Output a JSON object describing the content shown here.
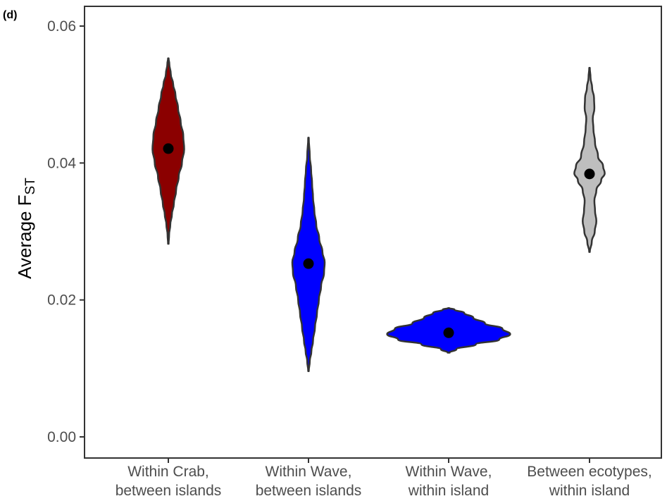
{
  "panel_label": "(d)",
  "chart_data": {
    "type": "violin",
    "ylabel": {
      "main": "Average F",
      "subscript": "ST"
    },
    "xlabel": "",
    "ylim": [
      0.0,
      0.062
    ],
    "yticks": [
      {
        "value": 0.0,
        "label": "0.00"
      },
      {
        "value": 0.02,
        "label": "0.02"
      },
      {
        "value": 0.04,
        "label": "0.04"
      },
      {
        "value": 0.06,
        "label": "0.06"
      }
    ],
    "grid": false,
    "legend": "none",
    "categories": [
      {
        "line1": "Within Crab,",
        "line2": "between islands"
      },
      {
        "line1": "Within Wave,",
        "line2": "between islands"
      },
      {
        "line1": "Within Wave,",
        "line2": "within island"
      },
      {
        "line1": "Between ecotypes,",
        "line2": "within island"
      }
    ],
    "series": [
      {
        "category_index": 0,
        "fill": "#8b0000",
        "mean": 0.0421,
        "min": 0.0282,
        "max": 0.0553,
        "density": [
          [
            0.0282,
            0.004
          ],
          [
            0.0295,
            0.012
          ],
          [
            0.031,
            0.03
          ],
          [
            0.0325,
            0.055
          ],
          [
            0.034,
            0.085
          ],
          [
            0.036,
            0.12
          ],
          [
            0.038,
            0.16
          ],
          [
            0.04,
            0.21
          ],
          [
            0.042,
            0.245
          ],
          [
            0.044,
            0.23
          ],
          [
            0.046,
            0.19
          ],
          [
            0.048,
            0.15
          ],
          [
            0.05,
            0.11
          ],
          [
            0.0515,
            0.075
          ],
          [
            0.053,
            0.038
          ],
          [
            0.0545,
            0.015
          ],
          [
            0.0553,
            0.004
          ]
        ]
      },
      {
        "category_index": 1,
        "fill": "#0000ff",
        "mean": 0.0253,
        "min": 0.0096,
        "max": 0.0437,
        "density": [
          [
            0.0096,
            0.004
          ],
          [
            0.011,
            0.02
          ],
          [
            0.0125,
            0.045
          ],
          [
            0.014,
            0.07
          ],
          [
            0.016,
            0.1
          ],
          [
            0.018,
            0.13
          ],
          [
            0.02,
            0.16
          ],
          [
            0.022,
            0.195
          ],
          [
            0.024,
            0.24
          ],
          [
            0.0255,
            0.25
          ],
          [
            0.027,
            0.215
          ],
          [
            0.029,
            0.165
          ],
          [
            0.031,
            0.12
          ],
          [
            0.033,
            0.09
          ],
          [
            0.035,
            0.07
          ],
          [
            0.037,
            0.055
          ],
          [
            0.039,
            0.04
          ],
          [
            0.041,
            0.02
          ],
          [
            0.0437,
            0.004
          ]
        ]
      },
      {
        "category_index": 2,
        "fill": "#0000ff",
        "mean": 0.0152,
        "min": 0.0123,
        "max": 0.0188,
        "density": [
          [
            0.0123,
            0.015
          ],
          [
            0.0128,
            0.12
          ],
          [
            0.0135,
            0.42
          ],
          [
            0.0142,
            0.78
          ],
          [
            0.015,
            0.95
          ],
          [
            0.0158,
            0.83
          ],
          [
            0.0166,
            0.56
          ],
          [
            0.0174,
            0.38
          ],
          [
            0.0181,
            0.24
          ],
          [
            0.0186,
            0.09
          ],
          [
            0.0188,
            0.01
          ]
        ]
      },
      {
        "category_index": 3,
        "fill": "#bebebe",
        "mean": 0.0384,
        "min": 0.027,
        "max": 0.0539,
        "density": [
          [
            0.027,
            0.004
          ],
          [
            0.0285,
            0.035
          ],
          [
            0.03,
            0.08
          ],
          [
            0.0315,
            0.105
          ],
          [
            0.033,
            0.085
          ],
          [
            0.0345,
            0.075
          ],
          [
            0.036,
            0.105
          ],
          [
            0.0375,
            0.18
          ],
          [
            0.0385,
            0.235
          ],
          [
            0.0395,
            0.21
          ],
          [
            0.041,
            0.13
          ],
          [
            0.043,
            0.085
          ],
          [
            0.045,
            0.06
          ],
          [
            0.0465,
            0.05
          ],
          [
            0.048,
            0.075
          ],
          [
            0.0495,
            0.07
          ],
          [
            0.051,
            0.04
          ],
          [
            0.0525,
            0.015
          ],
          [
            0.0539,
            0.004
          ]
        ]
      }
    ]
  }
}
